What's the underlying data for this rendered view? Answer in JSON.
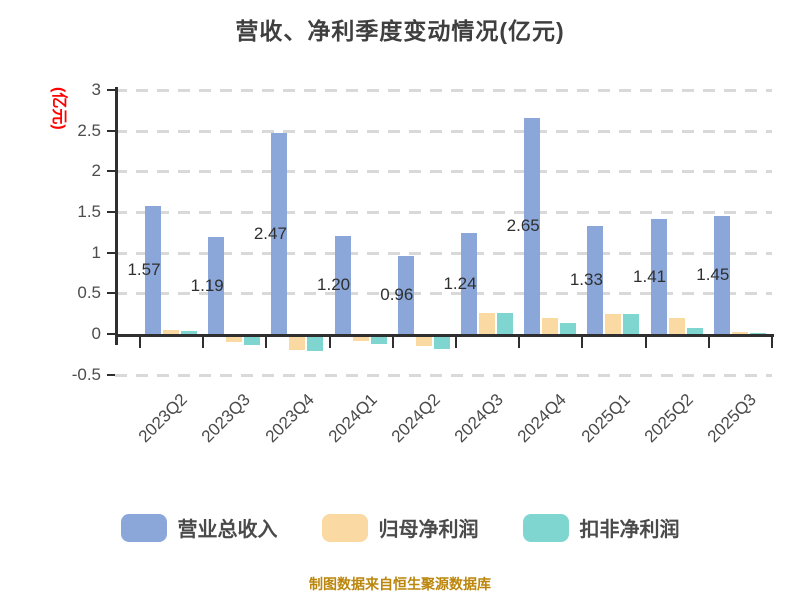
{
  "title": "营收、净利季度变动情况(亿元)",
  "footer": "制图数据来自恒生聚源数据库",
  "colors": {
    "revenue": "#8ba7d9",
    "net_profit": "#fbd9a2",
    "non_recurring_profit": "#7fd6d0",
    "grid": "#d9d9d9",
    "axis": "#2f2f2f",
    "axis_name": "#ff0000",
    "footer_text": "#bb860b",
    "title_text": "#3f3f3f"
  },
  "chart_data": {
    "type": "bar",
    "title": "营收、净利季度变动情况(亿元)",
    "ylabel": "(亿元)",
    "xlabel": "",
    "ylim": [
      -0.5,
      3
    ],
    "yticks": [
      "3",
      "2.5",
      "2",
      "1.5",
      "1",
      "0.5",
      "0",
      "-0.5"
    ],
    "ytick_values": [
      3,
      2.5,
      2,
      1.5,
      1,
      0.5,
      0,
      -0.5
    ],
    "grid": "dashed horizontal",
    "legend_position": "bottom",
    "categories": [
      "2023Q2",
      "2023Q3",
      "2023Q4",
      "2024Q1",
      "2024Q2",
      "2024Q3",
      "2024Q4",
      "2025Q1",
      "2025Q2",
      "2025Q3"
    ],
    "series": [
      {
        "name": "营业总收入",
        "color": "#8ba7d9",
        "values": [
          1.57,
          1.19,
          2.47,
          1.2,
          0.96,
          1.24,
          2.65,
          1.33,
          1.41,
          1.45
        ],
        "show_labels": true
      },
      {
        "name": "归母净利润",
        "color": "#fbd9a2",
        "values": [
          0.05,
          -0.06,
          -0.16,
          -0.05,
          -0.11,
          0.26,
          0.2,
          0.25,
          0.2,
          0.02
        ],
        "show_labels": false
      },
      {
        "name": "扣非净利润",
        "color": "#7fd6d0",
        "values": [
          0.04,
          -0.1,
          -0.17,
          -0.09,
          -0.15,
          0.26,
          0.14,
          0.24,
          0.07,
          0.01
        ],
        "show_labels": false
      }
    ]
  }
}
